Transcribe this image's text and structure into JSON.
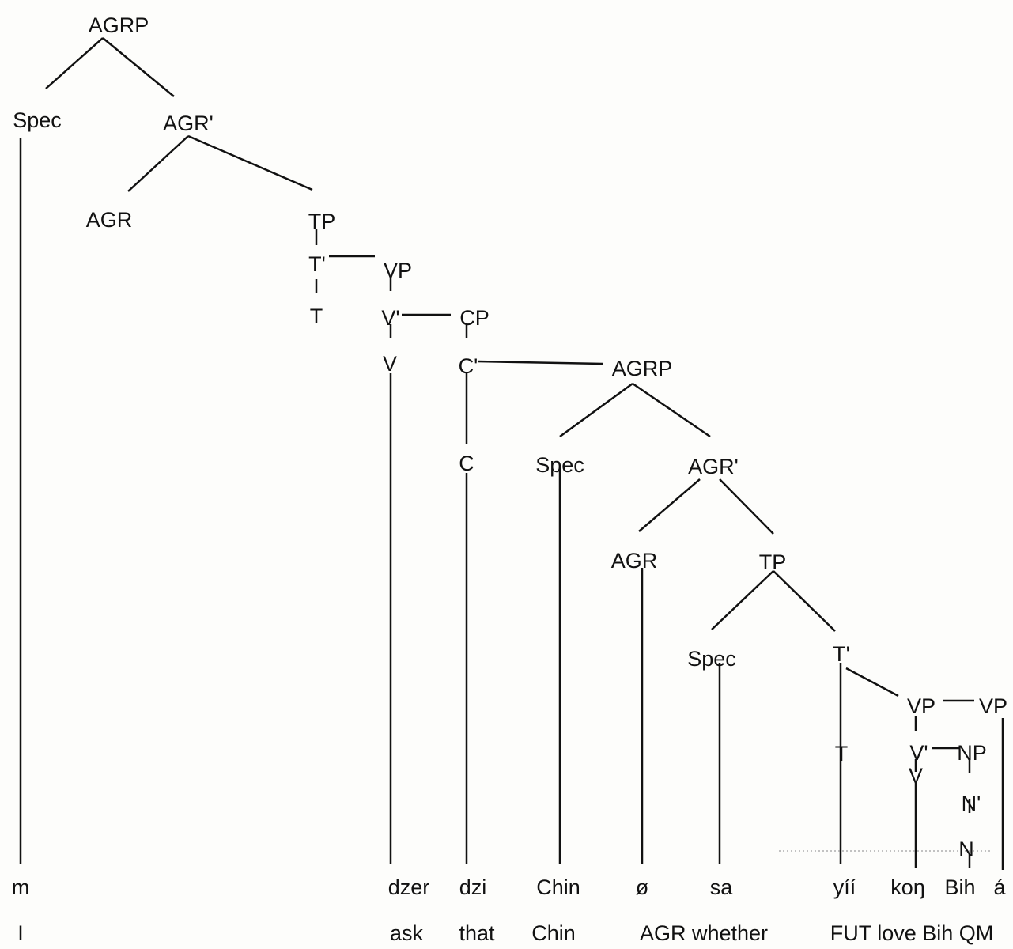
{
  "tree": {
    "nodes": [
      {
        "id": "agrp-top",
        "label": "AGRP"
      },
      {
        "id": "spec-top",
        "label": "Spec"
      },
      {
        "id": "agr-bar-top",
        "label": "AGR'"
      },
      {
        "id": "agr-top",
        "label": "AGR"
      },
      {
        "id": "tp-top",
        "label": "TP"
      },
      {
        "id": "t-bar-top",
        "label": "T'"
      },
      {
        "id": "t-top",
        "label": "T"
      },
      {
        "id": "vp-top",
        "label": "VP"
      },
      {
        "id": "v-bar-top",
        "label": "V'"
      },
      {
        "id": "v-top",
        "label": "V"
      },
      {
        "id": "cp",
        "label": "CP"
      },
      {
        "id": "c-bar",
        "label": "C'"
      },
      {
        "id": "c",
        "label": "C"
      },
      {
        "id": "agrp-low",
        "label": "AGRP"
      },
      {
        "id": "spec-low",
        "label": "Spec"
      },
      {
        "id": "agr-bar-low",
        "label": "AGR'"
      },
      {
        "id": "agr-low",
        "label": "AGR"
      },
      {
        "id": "tp-low",
        "label": "TP"
      },
      {
        "id": "spec-tp-low",
        "label": "Spec"
      },
      {
        "id": "t-bar-low",
        "label": "T'"
      },
      {
        "id": "t-low",
        "label": "T"
      },
      {
        "id": "vp-low",
        "label": "VP"
      },
      {
        "id": "vp-right",
        "label": "VP"
      },
      {
        "id": "v-bar-low",
        "label": "V'"
      },
      {
        "id": "np",
        "label": "NP"
      },
      {
        "id": "v-low",
        "label": "V"
      },
      {
        "id": "n-bar",
        "label": "N'"
      },
      {
        "id": "n",
        "label": "N"
      }
    ],
    "words": [
      "m",
      "dzer",
      "dzi",
      "Chin",
      "ø",
      "sa",
      "yíí",
      "koŋ",
      "Bih",
      "á"
    ],
    "glosses": [
      "I",
      "ask",
      "that",
      "Chin",
      "AGR whether",
      "FUT love Bih QM"
    ]
  }
}
